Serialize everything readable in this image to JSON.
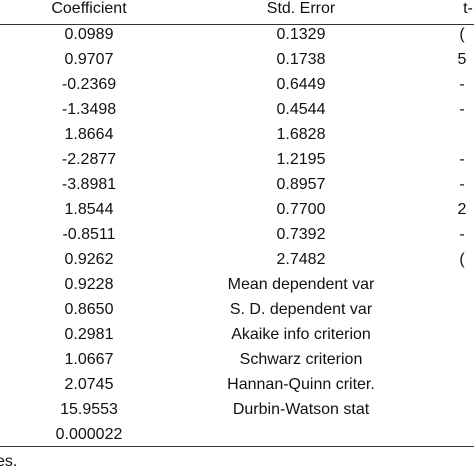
{
  "table": {
    "headers": {
      "coefficient": "Coefficient",
      "std_error": "Std. Error",
      "t_stat_partial": "t-"
    },
    "coefficient_rows": [
      {
        "coefficient": "0.0989",
        "std_error": "0.1329",
        "t_partial": "("
      },
      {
        "coefficient": "0.9707",
        "std_error": "0.1738",
        "t_partial": "5"
      },
      {
        "coefficient": "-0.2369",
        "std_error": "0.6449",
        "t_partial": "-"
      },
      {
        "coefficient": "-1.3498",
        "std_error": "0.4544",
        "t_partial": "-"
      },
      {
        "coefficient": "1.8664",
        "std_error": "1.6828",
        "t_partial": ""
      },
      {
        "coefficient": "-2.2877",
        "std_error": "1.2195",
        "t_partial": "-"
      },
      {
        "coefficient": "-3.8981",
        "std_error": "0.8957",
        "t_partial": "-"
      },
      {
        "coefficient": "1.8544",
        "std_error": "0.7700",
        "t_partial": "2"
      },
      {
        "coefficient": "-0.8511",
        "std_error": "0.7392",
        "t_partial": "-"
      },
      {
        "coefficient": "0.9262",
        "std_error": "2.7482",
        "t_partial": "("
      }
    ],
    "stat_rows": [
      {
        "value": "0.9228",
        "label": "Mean dependent var"
      },
      {
        "value": "0.8650",
        "label": "S. D. dependent var"
      },
      {
        "value": "0.2981",
        "label": "Akaike info criterion"
      },
      {
        "value": "1.0667",
        "label": "Schwarz criterion"
      },
      {
        "value": "2.0745",
        "label": "Hannan-Quinn criter."
      },
      {
        "value": "15.9553",
        "label": "Durbin-Watson stat"
      },
      {
        "value": "0.000022",
        "label": ""
      }
    ]
  },
  "footnote": "es."
}
